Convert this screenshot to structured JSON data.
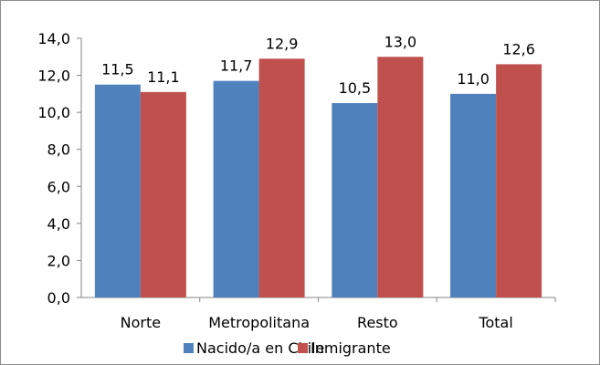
{
  "chart_data": {
    "type": "bar",
    "categories": [
      "Norte",
      "Metropolitana",
      "Resto",
      "Total"
    ],
    "series": [
      {
        "name": "Nacido/a en Chile",
        "color": "#4f81bd",
        "values": [
          11.5,
          11.7,
          10.5,
          11.0
        ],
        "labels": [
          "11,5",
          "11,7",
          "10,5",
          "11,0"
        ]
      },
      {
        "name": "Inmigrante",
        "color": "#c0504d",
        "values": [
          11.1,
          12.9,
          13.0,
          12.6
        ],
        "labels": [
          "11,1",
          "12,9",
          "13,0",
          "12,6"
        ]
      }
    ],
    "yticks": [
      0,
      2,
      4,
      6,
      8,
      10,
      12,
      14
    ],
    "ytick_labels": [
      "0,0",
      "2,0",
      "4,0",
      "6,0",
      "8,0",
      "10,0",
      "12,0",
      "14,0"
    ],
    "ylim": [
      0,
      14
    ],
    "grid": false,
    "legend_position": "bottom"
  }
}
